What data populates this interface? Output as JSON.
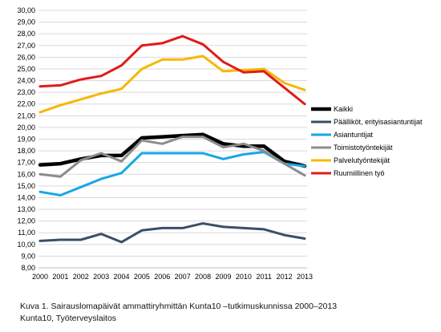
{
  "chart_data": {
    "type": "line",
    "x": [
      "2000",
      "2001",
      "2002",
      "2003",
      "2004",
      "2005",
      "2006",
      "2007",
      "2008",
      "2009",
      "2010",
      "2011",
      "2012",
      "2013"
    ],
    "y_ticks": [
      "8,00",
      "9,00",
      "10,00",
      "11,00",
      "12,00",
      "13,00",
      "14,00",
      "15,00",
      "16,00",
      "17,00",
      "18,00",
      "19,00",
      "20,00",
      "21,00",
      "22,00",
      "23,00",
      "24,00",
      "25,00",
      "26,00",
      "27,00",
      "28,00",
      "29,00",
      "30,00"
    ],
    "ylim": [
      8,
      30
    ],
    "grid": true,
    "legend_position": "right",
    "series": [
      {
        "name": "Kaikki",
        "color": "#000000",
        "values": [
          16.8,
          16.9,
          17.3,
          17.6,
          17.6,
          19.1,
          19.2,
          19.3,
          19.4,
          18.6,
          18.4,
          18.4,
          17.1,
          16.7
        ]
      },
      {
        "name": "Päälliköt, erityisasiantuntijat",
        "color": "#3a4f66",
        "values": [
          10.3,
          10.4,
          10.4,
          10.9,
          10.2,
          11.2,
          11.4,
          11.4,
          11.8,
          11.5,
          11.4,
          11.3,
          10.8,
          10.5
        ]
      },
      {
        "name": "Asiantuntijat",
        "color": "#1aa7e6",
        "values": [
          14.5,
          14.2,
          14.9,
          15.6,
          16.1,
          17.8,
          17.8,
          17.8,
          17.8,
          17.3,
          17.7,
          17.9,
          16.9,
          16.7
        ]
      },
      {
        "name": "Toimistotyöntekijät",
        "color": "#8c8c8c",
        "values": [
          16.0,
          15.8,
          17.2,
          17.8,
          17.1,
          18.9,
          18.6,
          19.2,
          19.2,
          18.3,
          18.6,
          18.0,
          16.9,
          15.9
        ]
      },
      {
        "name": "Palvelutyöntekijät",
        "color": "#f5b800",
        "values": [
          21.3,
          21.9,
          22.4,
          22.9,
          23.3,
          25.0,
          25.8,
          25.8,
          26.1,
          24.8,
          24.9,
          25.0,
          23.8,
          23.2
        ]
      },
      {
        "name": "Ruumiillinen työ",
        "color": "#e01b1b",
        "values": [
          23.5,
          23.6,
          24.1,
          24.4,
          25.3,
          27.0,
          27.2,
          27.8,
          27.1,
          25.6,
          24.7,
          24.8,
          23.4,
          22.0
        ]
      }
    ]
  },
  "caption": {
    "line1": "Kuva 1. Sairauslomapäivät ammattiryhmittän  Kunta10 –tutkimuskunnissa  2000–2013",
    "line2": "Kunta10, Työterveyslaitos"
  }
}
